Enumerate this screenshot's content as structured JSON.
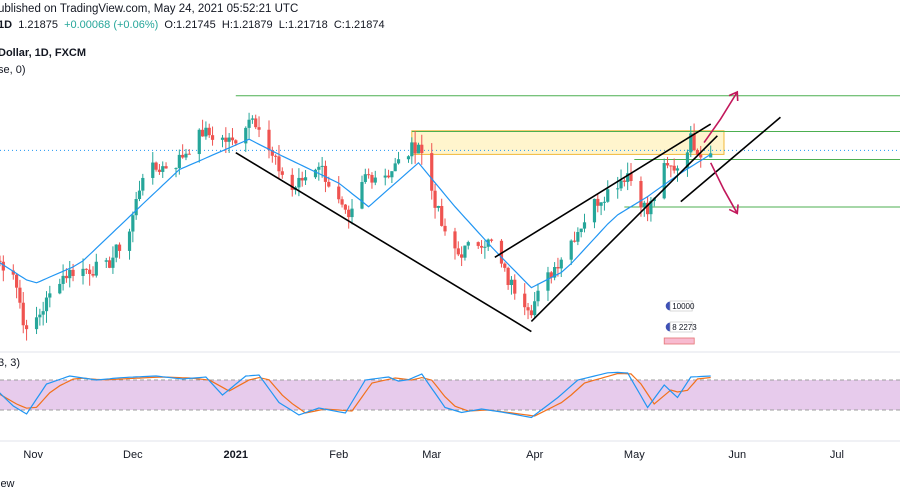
{
  "header": {
    "published": "ublished on TradingView.com, May 24, 2021 05:52:21 UTC",
    "symbol_interval": "1D",
    "last_price": "1.21875",
    "change": "+0.00068 (+0.06%)",
    "open": "O:1.21745",
    "high": "H:1.21879",
    "low": "L:1.21718",
    "close": "C:1.21874",
    "instrument": "Dollar, 1D, FXCM",
    "ma_params": "se, 0)",
    "stoch_params": "3, 3)"
  },
  "footer": {
    "brand": "iew"
  },
  "colors": {
    "up": "#26a69a",
    "down": "#ef5350",
    "ma": "#2196f3",
    "level": "#4caf50",
    "zone_fill": "#fff3c4",
    "zone_stroke": "#f0b93a",
    "trend": "#000000",
    "arrow": "#c2185b",
    "stoch_k": "#2196f3",
    "stoch_d": "#f2711c",
    "stoch_band": "#e1bee7"
  },
  "flags": {
    "top_value": "10000",
    "bottom_value": "8 2273"
  },
  "chart_data": {
    "type": "candlestick",
    "ylim": [
      1.161,
      1.244
    ],
    "xlim": [
      "2020-10-22",
      "2021-07-20"
    ],
    "x_tick_labels": [
      {
        "label": "Nov",
        "date": "2020-11-01",
        "bold": false
      },
      {
        "label": "Dec",
        "date": "2020-12-01",
        "bold": false
      },
      {
        "label": "2021",
        "date": "2021-01-01",
        "bold": true
      },
      {
        "label": "Feb",
        "date": "2021-02-01",
        "bold": false
      },
      {
        "label": "Mar",
        "date": "2021-03-01",
        "bold": false
      },
      {
        "label": "Apr",
        "date": "2021-04-01",
        "bold": false
      },
      {
        "label": "May",
        "date": "2021-05-01",
        "bold": false
      },
      {
        "label": "Jun",
        "date": "2021-06-01",
        "bold": false
      },
      {
        "label": "Jul",
        "date": "2021-07-01",
        "bold": false
      }
    ],
    "close_anchors": [
      [
        "2020-10-21",
        1.186
      ],
      [
        "2020-10-26",
        1.183
      ],
      [
        "2020-10-30",
        1.164
      ],
      [
        "2020-11-04",
        1.172
      ],
      [
        "2020-11-09",
        1.181
      ],
      [
        "2020-11-13",
        1.183
      ],
      [
        "2020-11-23",
        1.184
      ],
      [
        "2020-11-30",
        1.195
      ],
      [
        "2020-12-04",
        1.212
      ],
      [
        "2020-12-14",
        1.215
      ],
      [
        "2020-12-22",
        1.224
      ],
      [
        "2020-12-31",
        1.221
      ],
      [
        "2021-01-05",
        1.228
      ],
      [
        "2021-01-06",
        1.23
      ],
      [
        "2021-01-11",
        1.218
      ],
      [
        "2021-01-18",
        1.207
      ],
      [
        "2021-01-26",
        1.215
      ],
      [
        "2021-02-04",
        1.197
      ],
      [
        "2021-02-09",
        1.211
      ],
      [
        "2021-02-16",
        1.212
      ],
      [
        "2021-02-25",
        1.221
      ],
      [
        "2021-03-05",
        1.193
      ],
      [
        "2021-03-09",
        1.188
      ],
      [
        "2021-03-16",
        1.192
      ],
      [
        "2021-03-19",
        1.191
      ],
      [
        "2021-03-24",
        1.18
      ],
      [
        "2021-03-31",
        1.172
      ],
      [
        "2021-04-05",
        1.181
      ],
      [
        "2021-04-12",
        1.192
      ],
      [
        "2021-04-19",
        1.203
      ],
      [
        "2021-04-29",
        1.212
      ],
      [
        "2021-05-05",
        1.2
      ],
      [
        "2021-05-10",
        1.213
      ],
      [
        "2021-05-14",
        1.214
      ],
      [
        "2021-05-18",
        1.222
      ],
      [
        "2021-05-21",
        1.218
      ],
      [
        "2021-05-24",
        1.2187
      ]
    ],
    "ma_anchors": [
      [
        "2020-10-21",
        1.186
      ],
      [
        "2020-11-01",
        1.179
      ],
      [
        "2020-11-15",
        1.185
      ],
      [
        "2020-12-01",
        1.2
      ],
      [
        "2020-12-15",
        1.213
      ],
      [
        "2021-01-05",
        1.222
      ],
      [
        "2021-01-15",
        1.217
      ],
      [
        "2021-02-01",
        1.209
      ],
      [
        "2021-02-10",
        1.202
      ],
      [
        "2021-02-25",
        1.215
      ],
      [
        "2021-03-08",
        1.202
      ],
      [
        "2021-03-20",
        1.189
      ],
      [
        "2021-03-31",
        1.178
      ],
      [
        "2021-04-10",
        1.183
      ],
      [
        "2021-04-25",
        1.199
      ],
      [
        "2021-05-05",
        1.205
      ],
      [
        "2021-05-15",
        1.212
      ],
      [
        "2021-05-24",
        1.2175
      ]
    ],
    "horizontal_levels": [
      {
        "y": 1.2349,
        "from": "2021-01-01",
        "to": "2021-07-20"
      },
      {
        "y": 1.2243,
        "from": "2021-02-23",
        "to": "2021-07-20"
      },
      {
        "y": 1.216,
        "from": "2021-05-01",
        "to": "2021-07-20"
      },
      {
        "y": 1.2019,
        "from": "2021-04-28",
        "to": "2021-07-20"
      }
    ],
    "dotted_current_level": 1.2187,
    "resistance_zone": {
      "x0": "2021-02-23",
      "x1": "2021-05-28",
      "y0": 1.2175,
      "y1": 1.2245
    },
    "trend_lines": [
      {
        "p1": [
          "2021-01-01",
          1.218
        ],
        "p2": [
          "2021-03-31",
          1.165
        ]
      },
      {
        "p1": [
          "2021-03-20",
          1.187
        ],
        "p2": [
          "2021-05-24",
          1.2265
        ]
      },
      {
        "p1": [
          "2021-03-31",
          1.168
        ],
        "p2": [
          "2021-05-26",
          1.223
        ]
      },
      {
        "p1": [
          "2021-05-15",
          1.2035
        ],
        "p2": [
          "2021-06-14",
          1.2285
        ]
      }
    ],
    "projection_arrows": [
      {
        "pts": [
          [
            "2021-05-22",
            1.221
          ],
          [
            "2021-05-27",
            1.228
          ],
          [
            "2021-06-01",
            1.236
          ]
        ]
      },
      {
        "pts": [
          [
            "2021-05-24",
            1.215
          ],
          [
            "2021-05-28",
            1.207
          ],
          [
            "2021-06-01",
            1.2
          ]
        ]
      }
    ],
    "stochastic": {
      "ylim": [
        0,
        100
      ],
      "band": [
        20,
        80
      ],
      "k_anchors": [
        [
          "2020-10-21",
          60
        ],
        [
          "2020-10-26",
          28
        ],
        [
          "2020-10-30",
          12
        ],
        [
          "2020-11-05",
          72
        ],
        [
          "2020-11-12",
          88
        ],
        [
          "2020-11-20",
          80
        ],
        [
          "2020-11-28",
          85
        ],
        [
          "2020-12-08",
          88
        ],
        [
          "2020-12-16",
          82
        ],
        [
          "2020-12-23",
          86
        ],
        [
          "2020-12-28",
          50
        ],
        [
          "2021-01-04",
          88
        ],
        [
          "2021-01-08",
          90
        ],
        [
          "2021-01-14",
          35
        ],
        [
          "2021-01-20",
          10
        ],
        [
          "2021-01-26",
          24
        ],
        [
          "2021-02-03",
          14
        ],
        [
          "2021-02-09",
          80
        ],
        [
          "2021-02-16",
          86
        ],
        [
          "2021-02-20",
          75
        ],
        [
          "2021-02-26",
          92
        ],
        [
          "2021-03-05",
          25
        ],
        [
          "2021-03-10",
          15
        ],
        [
          "2021-03-16",
          22
        ],
        [
          "2021-03-22",
          16
        ],
        [
          "2021-03-31",
          5
        ],
        [
          "2021-04-08",
          45
        ],
        [
          "2021-04-14",
          80
        ],
        [
          "2021-04-24",
          96
        ],
        [
          "2021-04-29",
          94
        ],
        [
          "2021-05-05",
          25
        ],
        [
          "2021-05-10",
          70
        ],
        [
          "2021-05-14",
          45
        ],
        [
          "2021-05-18",
          86
        ],
        [
          "2021-05-24",
          88
        ]
      ],
      "d_anchors": [
        [
          "2020-10-21",
          55
        ],
        [
          "2020-10-27",
          32
        ],
        [
          "2020-11-01",
          18
        ],
        [
          "2020-11-07",
          62
        ],
        [
          "2020-11-14",
          85
        ],
        [
          "2020-11-22",
          80
        ],
        [
          "2020-11-30",
          83
        ],
        [
          "2020-12-10",
          86
        ],
        [
          "2020-12-18",
          84
        ],
        [
          "2020-12-24",
          80
        ],
        [
          "2020-12-30",
          58
        ],
        [
          "2021-01-05",
          80
        ],
        [
          "2021-01-10",
          88
        ],
        [
          "2021-01-16",
          42
        ],
        [
          "2021-01-22",
          14
        ],
        [
          "2021-01-28",
          22
        ],
        [
          "2021-02-05",
          18
        ],
        [
          "2021-02-11",
          74
        ],
        [
          "2021-02-18",
          84
        ],
        [
          "2021-02-23",
          80
        ],
        [
          "2021-02-28",
          88
        ],
        [
          "2021-03-07",
          30
        ],
        [
          "2021-03-12",
          18
        ],
        [
          "2021-03-18",
          20
        ],
        [
          "2021-03-24",
          15
        ],
        [
          "2021-04-01",
          8
        ],
        [
          "2021-04-10",
          38
        ],
        [
          "2021-04-16",
          74
        ],
        [
          "2021-04-26",
          93
        ],
        [
          "2021-05-01",
          92
        ],
        [
          "2021-05-07",
          32
        ],
        [
          "2021-05-12",
          60
        ],
        [
          "2021-05-16",
          52
        ],
        [
          "2021-05-20",
          82
        ],
        [
          "2021-05-24",
          85
        ]
      ]
    }
  }
}
